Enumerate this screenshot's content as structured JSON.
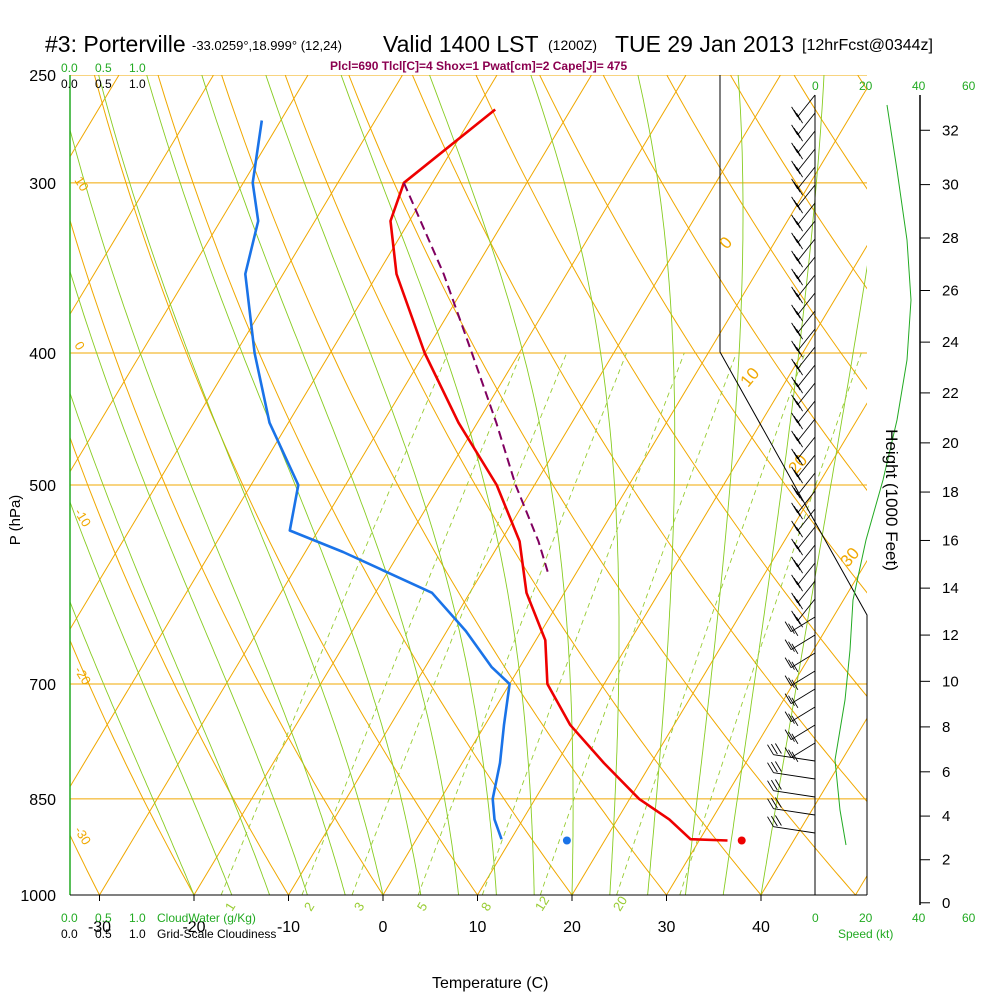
{
  "title": {
    "station": "#3: Porterville",
    "coords": "-33.0259°,18.999° (12,24)",
    "valid": "Valid 1400 LST",
    "utc": "(1200Z)",
    "date": "TUE 29 Jan 2013",
    "fcst": "[12hrFcst@0344z]"
  },
  "indices_line": "Plcl=690 Tlcl[C]=4 Shox=1 Pwat[cm]=2 Cape[J]= 475",
  "cloud_scales": {
    "top_green": [
      "0.0",
      "0.5",
      "1.0"
    ],
    "top_black": [
      "0.0",
      "0.5",
      "1.0"
    ],
    "bottom_green": [
      "0.0",
      "0.5",
      "1.0"
    ],
    "bottom_black": [
      "0.0",
      "0.5",
      "1.0"
    ],
    "bottom_green_label": "CloudWater (g/Kg)",
    "bottom_black_label": "Grid-Scale Cloudiness"
  },
  "speed_scale": {
    "top_labels": [
      "0",
      "20",
      "40",
      "60"
    ],
    "bottom_labels": [
      "0",
      "20",
      "40",
      "60"
    ],
    "label": "Speed (kt)"
  },
  "colors": {
    "temperature": "#ee0000",
    "dewpoint": "#1a73e8",
    "parcel": "#800060",
    "isotherm": "#f0a800",
    "dry_adiabat": "#f0a800",
    "moist_adiabat": "#88cc22",
    "mixing_ratio": "#99cc33",
    "green_text": "#22aa22"
  },
  "chart_data": {
    "type": "line",
    "diagram": "skew-t log-p",
    "xlabel": "Temperature (C)",
    "ylabel": "P (hPa)",
    "y2label": "Height (1000 Feet)",
    "xlim": [
      -35,
      45
    ],
    "ylim_hpa": [
      250,
      1000
    ],
    "x_ticks": [
      -30,
      -20,
      -10,
      0,
      10,
      20,
      30,
      40
    ],
    "p_ticks": [
      250,
      300,
      400,
      500,
      700,
      850,
      1000
    ],
    "height_ticks": [
      0,
      2,
      4,
      6,
      8,
      10,
      12,
      14,
      16,
      18,
      20,
      22,
      24,
      26,
      28,
      30,
      32
    ],
    "isotherm_labels": [
      "10",
      "0",
      "-10",
      "-20",
      "-30"
    ],
    "dry_adiabat_labels": [
      "0",
      "10",
      "20",
      "30"
    ],
    "mixing_ratio_labels": [
      "1",
      "2",
      "3",
      "5",
      "8",
      "12",
      "20"
    ],
    "series": [
      {
        "name": "temperature",
        "points": [
          {
            "p": 265,
            "t": -38
          },
          {
            "p": 300,
            "t": -43
          },
          {
            "p": 320,
            "t": -42
          },
          {
            "p": 350,
            "t": -38
          },
          {
            "p": 400,
            "t": -30
          },
          {
            "p": 450,
            "t": -22
          },
          {
            "p": 500,
            "t": -14
          },
          {
            "p": 550,
            "t": -8
          },
          {
            "p": 600,
            "t": -4
          },
          {
            "p": 650,
            "t": 1
          },
          {
            "p": 700,
            "t": 4
          },
          {
            "p": 750,
            "t": 9
          },
          {
            "p": 800,
            "t": 15
          },
          {
            "p": 850,
            "t": 21
          },
          {
            "p": 880,
            "t": 25.5
          },
          {
            "p": 910,
            "t": 29
          },
          {
            "p": 912,
            "t": 33
          }
        ]
      },
      {
        "name": "dewpoint",
        "points": [
          {
            "p": 270,
            "t": -62
          },
          {
            "p": 300,
            "t": -59
          },
          {
            "p": 320,
            "t": -56
          },
          {
            "p": 350,
            "t": -54
          },
          {
            "p": 400,
            "t": -48
          },
          {
            "p": 450,
            "t": -42
          },
          {
            "p": 500,
            "t": -35
          },
          {
            "p": 540,
            "t": -33
          },
          {
            "p": 560,
            "t": -26
          },
          {
            "p": 600,
            "t": -14
          },
          {
            "p": 640,
            "t": -8
          },
          {
            "p": 680,
            "t": -3
          },
          {
            "p": 700,
            "t": 0
          },
          {
            "p": 750,
            "t": 2
          },
          {
            "p": 800,
            "t": 4
          },
          {
            "p": 850,
            "t": 5.5
          },
          {
            "p": 880,
            "t": 7
          },
          {
            "p": 910,
            "t": 9
          }
        ]
      },
      {
        "name": "parcel",
        "points": [
          {
            "p": 300,
            "t": -43
          },
          {
            "p": 350,
            "t": -33
          },
          {
            "p": 400,
            "t": -25
          },
          {
            "p": 450,
            "t": -18
          },
          {
            "p": 500,
            "t": -12
          },
          {
            "p": 550,
            "t": -6
          },
          {
            "p": 580,
            "t": -3
          }
        ]
      }
    ],
    "surface_markers": [
      {
        "name": "temperature",
        "p": 912,
        "t": 34.5
      },
      {
        "name": "dewpoint",
        "p": 912,
        "t": 16
      }
    ]
  }
}
